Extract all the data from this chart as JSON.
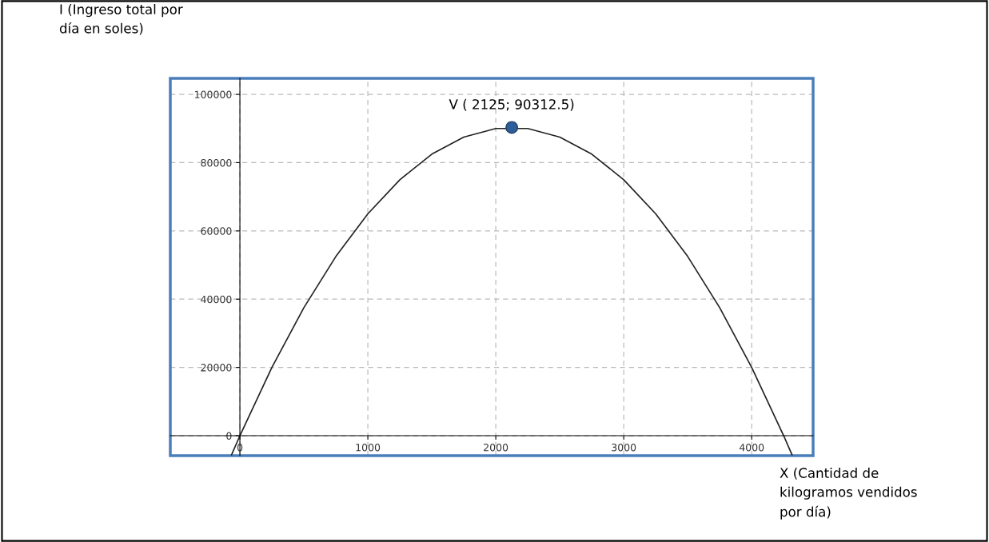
{
  "chart_data": {
    "type": "line",
    "ylabel": "I (Ingreso total por\ndía en soles)",
    "xlabel": "X (Cantidad de\nkilogramos vendidos\npor día)",
    "xlim": [
      -544,
      4480
    ],
    "ylim": [
      -5850,
      104700
    ],
    "xticks": [
      0,
      1000,
      2000,
      3000,
      4000
    ],
    "yticks": [
      0,
      20000,
      40000,
      60000,
      80000,
      100000
    ],
    "grid": true,
    "series": [
      {
        "color": "#222222",
        "marker": "none",
        "x": [
          -65,
          0,
          250,
          500,
          750,
          1000,
          1250,
          1500,
          1750,
          2000,
          2250,
          2500,
          2750,
          3000,
          3250,
          3500,
          3750,
          4000,
          4250,
          4315
        ],
        "values": [
          -5600,
          0,
          20000,
          37500,
          52500,
          65000,
          75000,
          82500,
          87500,
          90000,
          90000,
          87500,
          82500,
          75000,
          65000,
          52500,
          37500,
          20000,
          0,
          -5600
        ]
      },
      {
        "type": "scatter",
        "color": "#2e5e9a",
        "marker": "circle",
        "x": [
          2125
        ],
        "values": [
          90312.5
        ]
      }
    ],
    "annotations": [
      {
        "text": "V ( 2125; 90312.5)",
        "x": 2125,
        "y": 90312.5
      }
    ]
  }
}
